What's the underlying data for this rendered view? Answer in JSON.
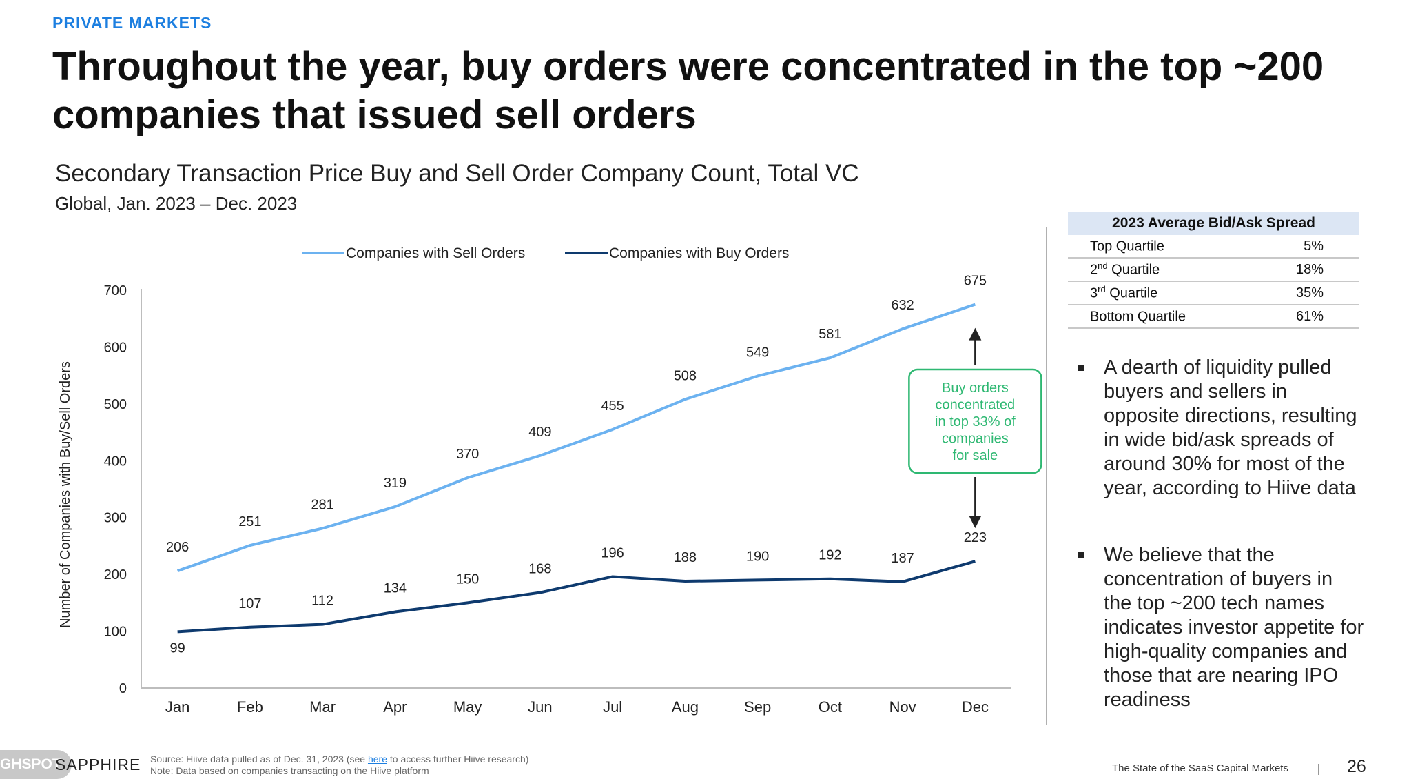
{
  "section_tag": "PRIVATE MARKETS",
  "headline": "Throughout the year, buy orders were concentrated in the top ~200 companies that issued sell orders",
  "chart_data": {
    "type": "line",
    "title": "Secondary Transaction Price Buy and Sell Order Company Count, Total VC",
    "subtitle": "Global, Jan. 2023 – Dec. 2023",
    "xlabel": "",
    "ylabel": "Number of Companies with Buy/Sell Orders",
    "categories": [
      "Jan",
      "Feb",
      "Mar",
      "Apr",
      "May",
      "Jun",
      "Jul",
      "Aug",
      "Sep",
      "Oct",
      "Nov",
      "Dec"
    ],
    "ylim": [
      0,
      700
    ],
    "yticks": [
      0,
      100,
      200,
      300,
      400,
      500,
      600,
      700
    ],
    "grid": false,
    "legend_position": "top",
    "series": [
      {
        "name": "Companies with Sell Orders",
        "color": "#6cb2f0",
        "values": [
          206,
          251,
          281,
          319,
          370,
          409,
          455,
          508,
          549,
          581,
          632,
          675
        ]
      },
      {
        "name": "Companies with Buy Orders",
        "color": "#0e3a6e",
        "values": [
          99,
          107,
          112,
          134,
          150,
          168,
          196,
          188,
          190,
          192,
          187,
          223
        ]
      }
    ],
    "annotation": {
      "text": [
        "Buy orders",
        "concentrated",
        "in top 33% of",
        "companies",
        "for sale"
      ],
      "color": "#2eb872"
    }
  },
  "spread_table": {
    "header": "2023 Average Bid/Ask Spread",
    "rows": [
      {
        "label": "Top Quartile",
        "sup": "",
        "rest": "",
        "value": "5%"
      },
      {
        "label": "2",
        "sup": "nd",
        "rest": " Quartile",
        "value": "18%"
      },
      {
        "label": "3",
        "sup": "rd",
        "rest": " Quartile",
        "value": "35%"
      },
      {
        "label": "Bottom Quartile",
        "sup": "",
        "rest": "",
        "value": "61%"
      }
    ]
  },
  "bullets": [
    "A dearth of liquidity pulled buyers and sellers in opposite directions, resulting in wide bid/ask spreads of around 30% for most of the year, according to Hiive data",
    "We believe that the concentration of buyers in the top ~200 tech names indicates investor appetite for high-quality companies and those that are nearing IPO readiness"
  ],
  "footer": {
    "badge": "GHSPOT",
    "brand": "SAPPHIRE",
    "source_prefix": "Source: Hiive data pulled as of Dec. 31, 2023 (see ",
    "source_link": "here",
    "source_suffix": " to access further Hiive research)",
    "note": "Note: Data based on companies transacting on the Hiive platform",
    "report_title": "The State of the SaaS Capital Markets",
    "page_number": "26"
  }
}
